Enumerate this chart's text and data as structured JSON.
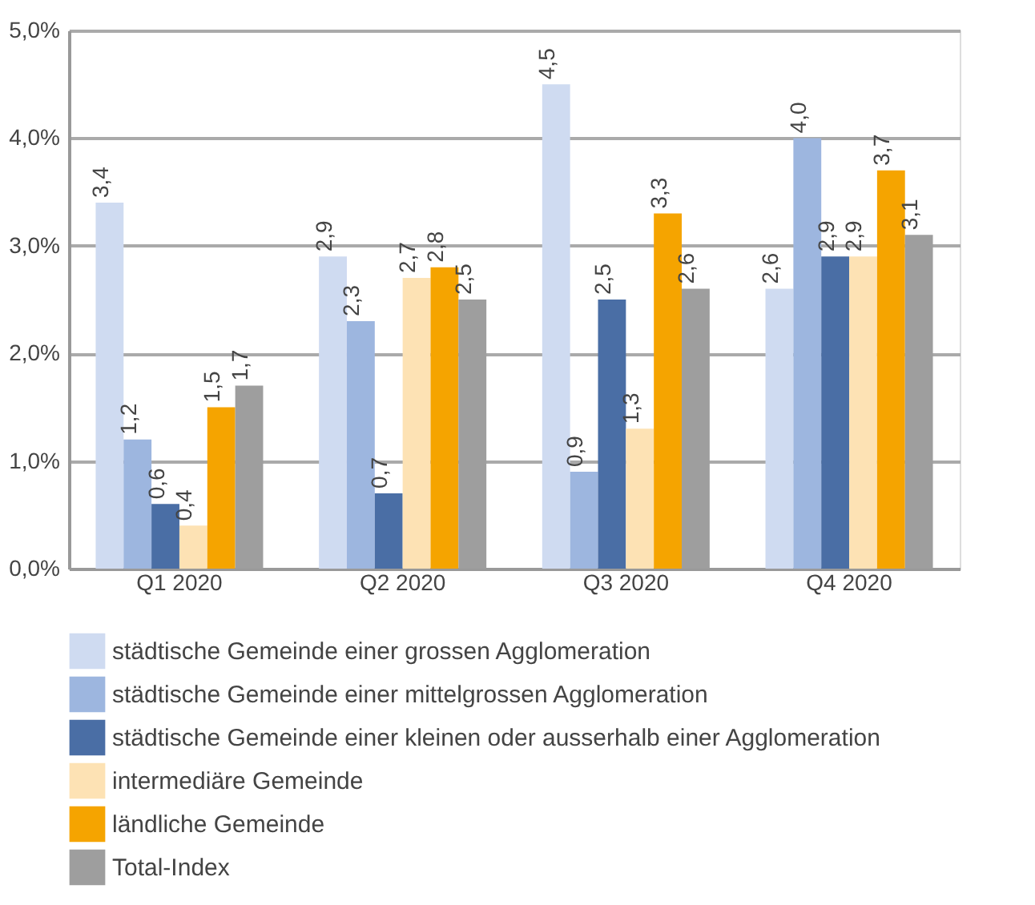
{
  "chart_data": {
    "type": "bar",
    "categories": [
      "Q1 2020",
      "Q2 2020",
      "Q3 2020",
      "Q4 2020"
    ],
    "series": [
      {
        "name": "städtische Gemeinde einer grossen Agglomeration",
        "color": "#cfdbf1",
        "values": [
          3.4,
          2.9,
          4.5,
          2.6
        ],
        "value_labels": [
          "3,4",
          "2,9",
          "4,5",
          "2,6"
        ]
      },
      {
        "name": "städtische Gemeinde einer mittelgrossen Agglomeration",
        "color": "#9db6df",
        "values": [
          1.2,
          2.3,
          0.9,
          4.0
        ],
        "value_labels": [
          "1,2",
          "2,3",
          "0,9",
          "4,0"
        ]
      },
      {
        "name": "städtische Gemeinde einer kleinen oder ausserhalb einer Agglomeration",
        "color": "#4a6ea5",
        "values": [
          0.6,
          0.7,
          2.5,
          2.9
        ],
        "value_labels": [
          "0,6",
          "0,7",
          "2,5",
          "2,9"
        ]
      },
      {
        "name": "intermediäre Gemeinde",
        "color": "#fde2b4",
        "values": [
          0.4,
          2.7,
          1.3,
          2.9
        ],
        "value_labels": [
          "0,4",
          "2,7",
          "1,3",
          "2,9"
        ]
      },
      {
        "name": "ländliche Gemeinde",
        "color": "#f5a400",
        "values": [
          1.5,
          2.8,
          3.3,
          3.7
        ],
        "value_labels": [
          "1,5",
          "2,8",
          "3,3",
          "3,7"
        ]
      },
      {
        "name": "Total-Index",
        "color": "#9e9e9e",
        "values": [
          1.7,
          2.5,
          2.6,
          3.1
        ],
        "value_labels": [
          "1,7",
          "2,5",
          "2,6",
          "3,1"
        ]
      }
    ],
    "ylim": [
      0,
      5
    ],
    "yticks": [
      {
        "value": 0,
        "label": "0,0%"
      },
      {
        "value": 1,
        "label": "1,0%"
      },
      {
        "value": 2,
        "label": "2,0%"
      },
      {
        "value": 3,
        "label": "3,0%"
      },
      {
        "value": 4,
        "label": "4,0%"
      },
      {
        "value": 5,
        "label": "5,0%"
      }
    ],
    "grid": "y",
    "legend": "bottom"
  }
}
